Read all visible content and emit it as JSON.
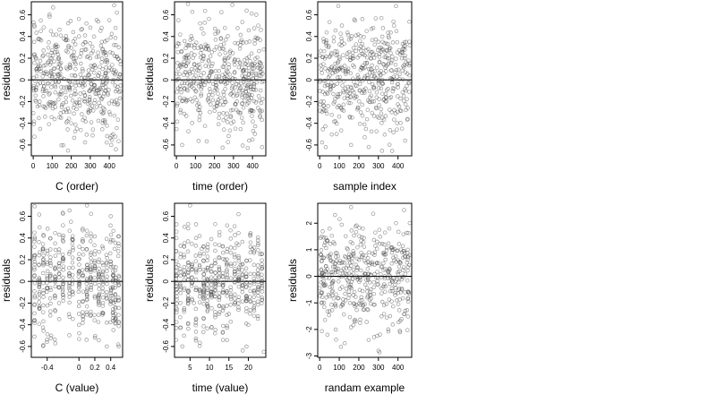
{
  "chart_data": [
    {
      "type": "scatter",
      "xlabel": "C (order)",
      "ylabel": "residuals",
      "xlim": [
        -10,
        470
      ],
      "ylim": [
        -0.7,
        0.72
      ],
      "xticks": [
        0,
        100,
        200,
        300,
        400
      ],
      "yticks": [
        -0.6,
        -0.4,
        -0.2,
        0.0,
        0.2,
        0.4,
        0.6
      ],
      "hline": 0,
      "n_points": 460,
      "series": [
        {
          "x": [
            5,
            15,
            40,
            70,
            90,
            110,
            150,
            180,
            200,
            250,
            290,
            320,
            350,
            380,
            400,
            420,
            440,
            450,
            60,
            120,
            230,
            300,
            410,
            30,
            160,
            270,
            360,
            430
          ],
          "y": [
            0.35,
            -0.2,
            0.45,
            -0.1,
            0.2,
            0.05,
            -0.25,
            0.1,
            -0.4,
            0.15,
            -0.3,
            0.4,
            -0.15,
            0.25,
            0.55,
            -0.5,
            0.62,
            0.3,
            -0.25,
            0.3,
            -0.45,
            0.2,
            -0.6,
            0.1,
            0.38,
            -0.35,
            0.48,
            0.05
          ]
        }
      ]
    },
    {
      "type": "scatter",
      "xlabel": "time (order)",
      "ylabel": "residuals",
      "xlim": [
        -10,
        470
      ],
      "ylim": [
        -0.7,
        0.72
      ],
      "xticks": [
        0,
        100,
        200,
        300,
        400
      ],
      "yticks": [
        -0.6,
        -0.4,
        -0.2,
        0.0,
        0.2,
        0.4,
        0.6
      ],
      "hline": 0,
      "n_points": 460,
      "series": [
        {
          "x": [
            10,
            30,
            60,
            80,
            100,
            130,
            170,
            190,
            220,
            260,
            280,
            310,
            340,
            370,
            400,
            430,
            450,
            20,
            140,
            250,
            330,
            420
          ],
          "y": [
            0.55,
            -0.6,
            0.7,
            0.1,
            -0.1,
            0.3,
            -0.2,
            0.15,
            0.45,
            -0.35,
            0.05,
            -0.45,
            0.35,
            0.2,
            -0.55,
            0.5,
            -0.62,
            -0.3,
            0.22,
            0.12,
            -0.1,
            0.6
          ]
        }
      ]
    },
    {
      "type": "scatter",
      "xlabel": "sample index",
      "ylabel": "residuals",
      "xlim": [
        -10,
        470
      ],
      "ylim": [
        -0.7,
        0.72
      ],
      "xticks": [
        0,
        100,
        200,
        300,
        400
      ],
      "yticks": [
        -0.6,
        -0.4,
        -0.2,
        0.0,
        0.2,
        0.4,
        0.6
      ],
      "hline": 0,
      "n_points": 460,
      "series": [
        {
          "x": [
            20,
            45,
            80,
            95,
            120,
            160,
            170,
            210,
            240,
            260,
            300,
            320,
            340,
            380,
            390,
            420,
            440,
            460
          ],
          "y": [
            -0.2,
            0.3,
            0.15,
            0.68,
            -0.1,
            -0.6,
            0.2,
            -0.3,
            0.45,
            0.1,
            0.35,
            -0.35,
            -0.2,
            0.5,
            0.68,
            -0.45,
            -0.1,
            0.15
          ]
        }
      ]
    },
    {
      "type": "scatter",
      "xlabel": "C (value)",
      "ylabel": "residuals",
      "xlim": [
        -0.6,
        0.55
      ],
      "ylim": [
        -0.7,
        0.72
      ],
      "xticks": [
        -0.4,
        0.0,
        0.2,
        0.4
      ],
      "yticks": [
        -0.6,
        -0.4,
        -0.2,
        0.0,
        0.2,
        0.4,
        0.6
      ],
      "hline": 0,
      "n_points": 460,
      "series": [
        {
          "x": [
            -0.56,
            -0.5,
            -0.45,
            -0.4,
            -0.35,
            -0.3,
            -0.2,
            -0.1,
            0.0,
            0.1,
            0.2,
            0.35,
            0.4,
            0.45,
            0.5
          ],
          "y": [
            0.45,
            -0.25,
            0.3,
            0.05,
            -0.5,
            0.35,
            0.2,
            0.55,
            -0.3,
            0.7,
            -0.15,
            -0.6,
            0.6,
            0.3,
            -0.6
          ]
        }
      ]
    },
    {
      "type": "scatter",
      "xlabel": "time (value)",
      "ylabel": "residuals",
      "xlim": [
        1,
        24.5
      ],
      "ylim": [
        -0.7,
        0.72
      ],
      "xticks": [
        5,
        10,
        15,
        20
      ],
      "yticks": [
        -0.6,
        -0.4,
        -0.2,
        0.0,
        0.2,
        0.4,
        0.6
      ],
      "hline": 0,
      "n_points": 460,
      "series": [
        {
          "x": [
            2,
            3,
            5,
            6,
            8,
            9,
            11,
            12,
            14,
            15,
            17,
            18,
            20,
            21,
            23,
            24
          ],
          "y": [
            0.15,
            -0.6,
            0.7,
            -0.2,
            0.3,
            0.1,
            -0.1,
            0.0,
            0.2,
            -0.3,
            0.35,
            0.15,
            -0.4,
            0.3,
            0.25,
            -0.65
          ]
        }
      ]
    },
    {
      "type": "scatter",
      "xlabel": "randam example",
      "ylabel": "residuals",
      "xlim": [
        -10,
        470
      ],
      "ylim": [
        -3.05,
        2.75
      ],
      "xticks": [
        0,
        100,
        200,
        300,
        400
      ],
      "yticks": [
        -3,
        -2,
        -1,
        0,
        1,
        2
      ],
      "hline": 0,
      "n_points": 460,
      "series": [
        {
          "x": [
            10,
            40,
            80,
            120,
            160,
            190,
            220,
            250,
            280,
            300,
            330,
            360,
            390,
            420,
            450
          ],
          "y": [
            1.5,
            -2.2,
            0.5,
            -1.0,
            2.6,
            0.0,
            1.8,
            -2.4,
            0.8,
            -2.8,
            1.2,
            -1.5,
            2.0,
            -0.5,
            1.0
          ]
        }
      ]
    }
  ]
}
